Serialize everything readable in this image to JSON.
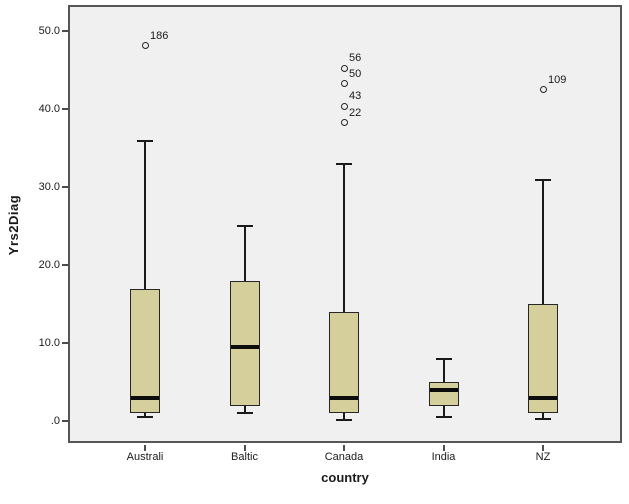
{
  "chart_data": {
    "type": "boxplot",
    "title": "",
    "xlabel": "country",
    "ylabel": "Yrs2Diag",
    "ylim": [
      -2.8,
      53.4
    ],
    "grid": false,
    "legend": "none",
    "yticks": [
      {
        "label": ".0",
        "value": 0
      },
      {
        "label": "10.0",
        "value": 10
      },
      {
        "label": "20.0",
        "value": 20
      },
      {
        "label": "30.0",
        "value": 30
      },
      {
        "label": "40.0",
        "value": 40
      },
      {
        "label": "50.0",
        "value": 50
      }
    ],
    "categories": [
      "Australi",
      "Baltic",
      "Canada",
      "India",
      "NZ"
    ],
    "boxes": [
      {
        "category": "Australi",
        "whisker_low": 0.5,
        "q1": 1,
        "median": 3,
        "q3": 17,
        "whisker_high": 36,
        "outliers": [
          {
            "label": "186",
            "value": 48.2
          }
        ]
      },
      {
        "category": "Baltic",
        "whisker_low": 1,
        "q1": 2,
        "median": 9.5,
        "q3": 18,
        "whisker_high": 25,
        "outliers": []
      },
      {
        "category": "Canada",
        "whisker_low": 0.2,
        "q1": 1,
        "median": 3,
        "q3": 14,
        "whisker_high": 33,
        "outliers": [
          {
            "label": "56",
            "value": 45.3
          },
          {
            "label": "50",
            "value": 43.3
          },
          {
            "label": "43",
            "value": 40.4
          },
          {
            "label": "22",
            "value": 38.3
          }
        ]
      },
      {
        "category": "India",
        "whisker_low": 0.5,
        "q1": 2,
        "median": 4,
        "q3": 5,
        "whisker_high": 8,
        "outliers": []
      },
      {
        "category": "NZ",
        "whisker_low": 0.3,
        "q1": 1,
        "median": 3,
        "q3": 15,
        "whisker_high": 31,
        "outliers": [
          {
            "label": "109",
            "value": 42.5
          }
        ]
      }
    ],
    "colors": {
      "box_fill": "#d5cf9b",
      "box_border": "#262626",
      "median": "#0d0d0d",
      "whisker": "#1a1a1a",
      "plot_bg": "#f0f0f0",
      "frame": "#565656",
      "text": "#1a1a1a"
    }
  }
}
